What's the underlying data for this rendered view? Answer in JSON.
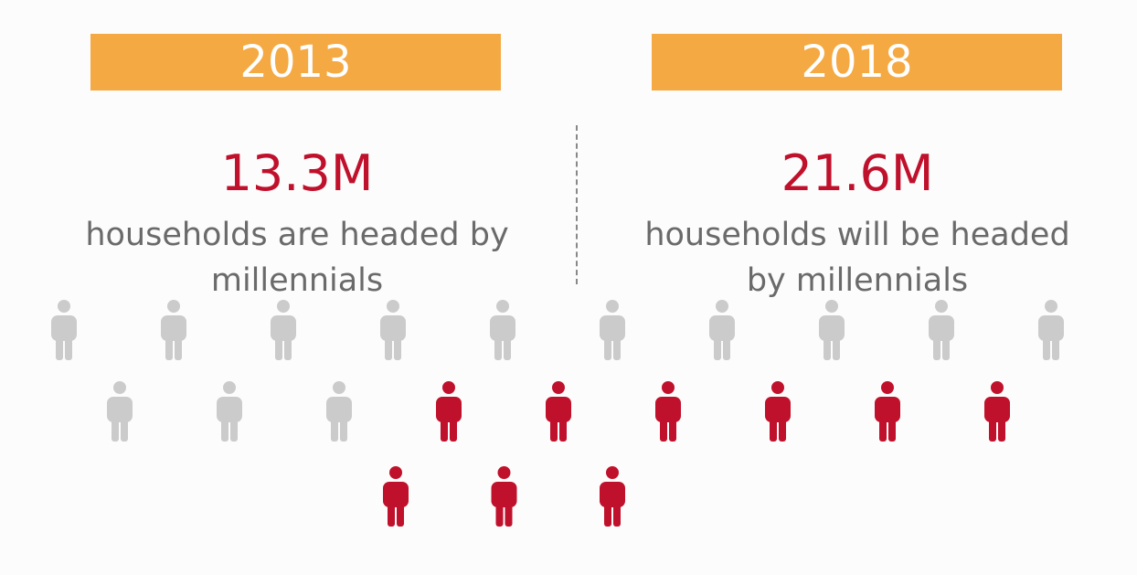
{
  "panels": [
    {
      "year": "2013",
      "value": "13.3M",
      "lines": [
        "households are headed by",
        "millennials"
      ]
    },
    {
      "year": "2018",
      "value": "21.6M",
      "lines": [
        "households will be headed",
        "by millennials"
      ]
    }
  ]
}
